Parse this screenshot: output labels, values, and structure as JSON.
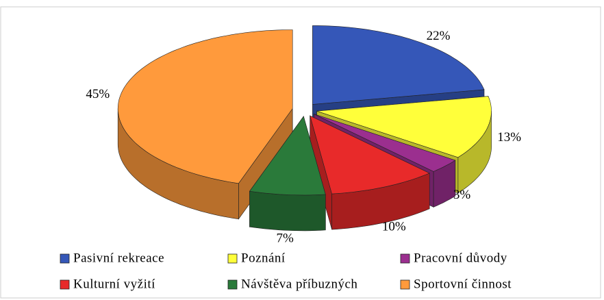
{
  "chart_data": {
    "type": "pie3d",
    "categories": [
      "Pasivní rekreace",
      "Poznání",
      "Pracovní důvody",
      "Kulturní vyžití",
      "Návštěva příbuzných",
      "Sportovní činnost"
    ],
    "values": [
      22,
      13,
      3,
      10,
      7,
      45
    ],
    "value_labels": [
      "22%",
      "13%",
      "3%",
      "10%",
      "7%",
      "45%"
    ],
    "colors": [
      "#3557b8",
      "#ffff3a",
      "#9b2f8f",
      "#e82a2a",
      "#2a7a3a",
      "#ff9a3c"
    ],
    "legend": "bottom"
  }
}
